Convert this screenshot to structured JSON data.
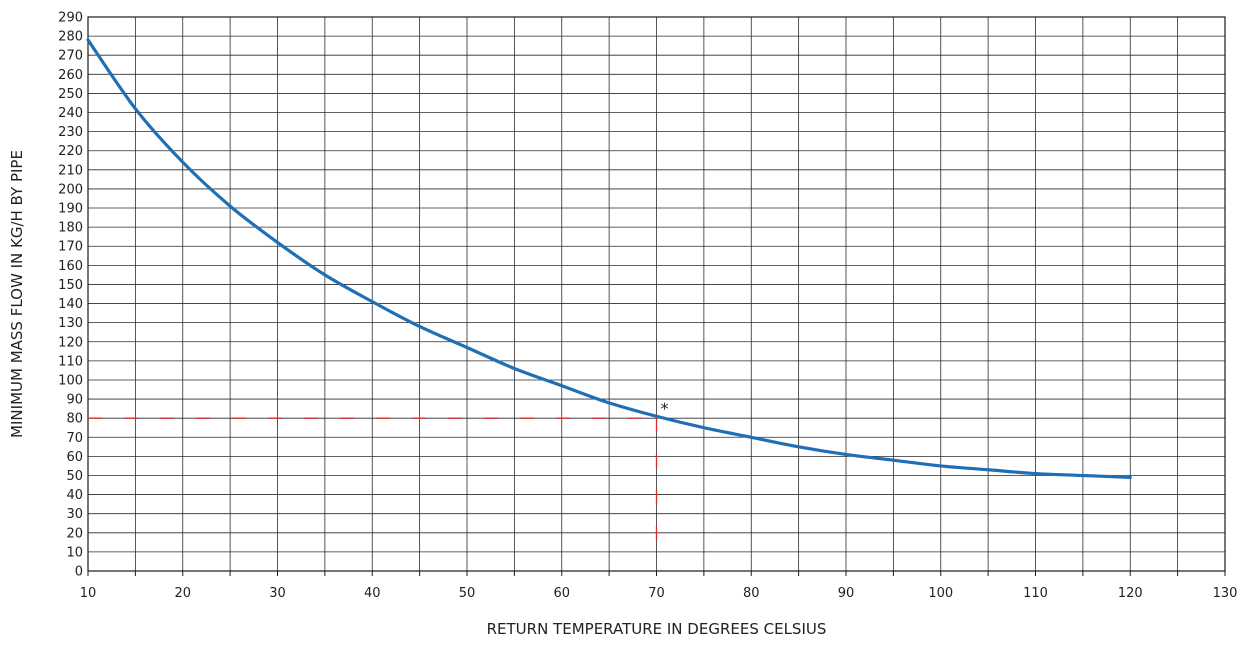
{
  "chart_data": {
    "type": "line",
    "xlabel": "RETURN TEMPERATURE IN DEGREES CELSIUS",
    "ylabel": "MINIMUM MASS FLOW IN KG/H BY PIPE",
    "xlim": [
      10,
      130
    ],
    "ylim": [
      0,
      290
    ],
    "x_ticks": [
      10,
      20,
      30,
      40,
      50,
      60,
      70,
      80,
      90,
      100,
      110,
      120,
      130
    ],
    "y_ticks": [
      0,
      10,
      20,
      30,
      40,
      50,
      60,
      70,
      80,
      90,
      100,
      110,
      120,
      130,
      140,
      150,
      160,
      170,
      180,
      190,
      200,
      210,
      220,
      230,
      240,
      250,
      260,
      270,
      280,
      290
    ],
    "grid": true,
    "series": [
      {
        "color": "#1f6fb7",
        "x": [
          10,
          15,
          20,
          25,
          30,
          35,
          40,
          45,
          50,
          55,
          60,
          65,
          70,
          75,
          80,
          85,
          90,
          95,
          100,
          105,
          110,
          115,
          120
        ],
        "y": [
          278,
          242,
          214,
          191,
          172,
          155,
          141,
          128,
          117,
          106,
          97,
          88,
          81,
          75,
          70,
          65,
          61,
          58,
          55,
          53,
          51,
          50,
          49
        ]
      }
    ],
    "annotation": {
      "x": 70,
      "y": 80,
      "marker_text": "*",
      "line_color": "#d32f2f",
      "line_style": "dashed"
    }
  }
}
